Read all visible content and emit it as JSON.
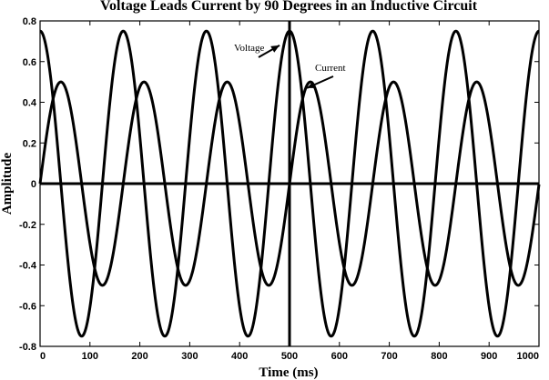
{
  "chart_data": {
    "type": "line",
    "title": "Voltage Leads Current by 90 Degrees in an Inductive Circuit",
    "xlabel": "Time (ms)",
    "ylabel": "Amplitude",
    "xlim": [
      0,
      1000
    ],
    "ylim": [
      -0.8,
      0.8
    ],
    "x_ticks": [
      0,
      100,
      200,
      300,
      400,
      500,
      600,
      700,
      800,
      900,
      1000
    ],
    "y_ticks": [
      0.8,
      0.6,
      0.4,
      0.2,
      0,
      -0.2,
      -0.4,
      -0.6,
      -0.8
    ],
    "x_tick_labels": [
      "0",
      "100",
      "200",
      "300",
      "400",
      "500",
      "600",
      "700",
      "800",
      "900",
      "1000"
    ],
    "y_tick_labels": [
      "0.8",
      "0.6",
      "0.4",
      "0.2",
      "0",
      "-0.2",
      "-0.4",
      "-0.6",
      "-0.8"
    ],
    "grid": false,
    "series": [
      {
        "name": "Voltage",
        "function": "amplitude*cos(2*pi*t/period)",
        "amplitude": 0.75,
        "period_ms": 166.7,
        "phase_deg": 90
      },
      {
        "name": "Current",
        "function": "amplitude*sin(2*pi*t/period)",
        "amplitude": 0.5,
        "period_ms": 166.7,
        "phase_deg": 0
      }
    ],
    "annotations": [
      {
        "text": "Voltage",
        "arrow_to": {
          "x": 480,
          "y": 0.68
        }
      },
      {
        "text": "Current",
        "arrow_to": {
          "x": 535,
          "y": 0.47
        }
      }
    ],
    "reference_lines": [
      {
        "orientation": "horizontal",
        "value": 0
      },
      {
        "orientation": "vertical",
        "value": 500
      }
    ]
  }
}
